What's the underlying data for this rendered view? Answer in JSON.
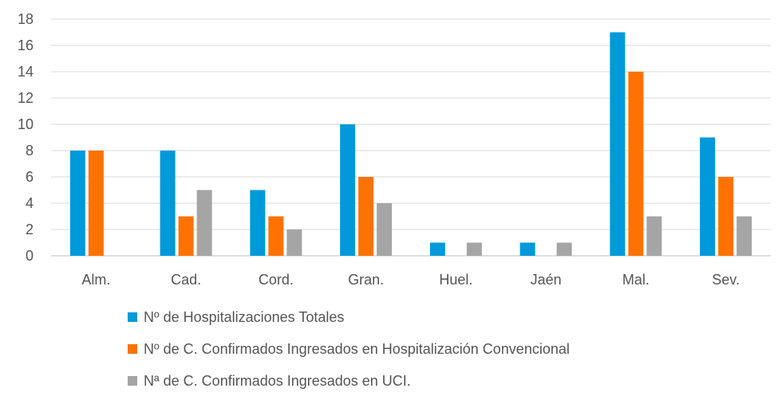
{
  "chart_data": {
    "type": "bar",
    "categories": [
      "Alm.",
      "Cad.",
      "Cord.",
      "Gran.",
      "Huel.",
      "Jaén",
      "Mal.",
      "Sev."
    ],
    "series": [
      {
        "name": "Nº de Hospitalizaciones Totales",
        "color": "#0099DA",
        "values": [
          8,
          8,
          5,
          10,
          1,
          1,
          17,
          9
        ]
      },
      {
        "name": "Nº de C. Confirmados Ingresados en Hospitalización Convencional",
        "color": "#FF7200",
        "values": [
          8,
          3,
          3,
          6,
          0,
          0,
          14,
          6
        ]
      },
      {
        "name": "Nª de C. Confirmados Ingresados en UCI.",
        "color": "#A5A5A5",
        "values": [
          0,
          5,
          2,
          4,
          1,
          1,
          3,
          3
        ]
      }
    ],
    "yticks": [
      "0",
      "2",
      "4",
      "6",
      "8",
      "10",
      "12",
      "14",
      "16",
      "18"
    ],
    "ylim": [
      0,
      18
    ],
    "grid": true,
    "legend_position": "bottom-left"
  }
}
